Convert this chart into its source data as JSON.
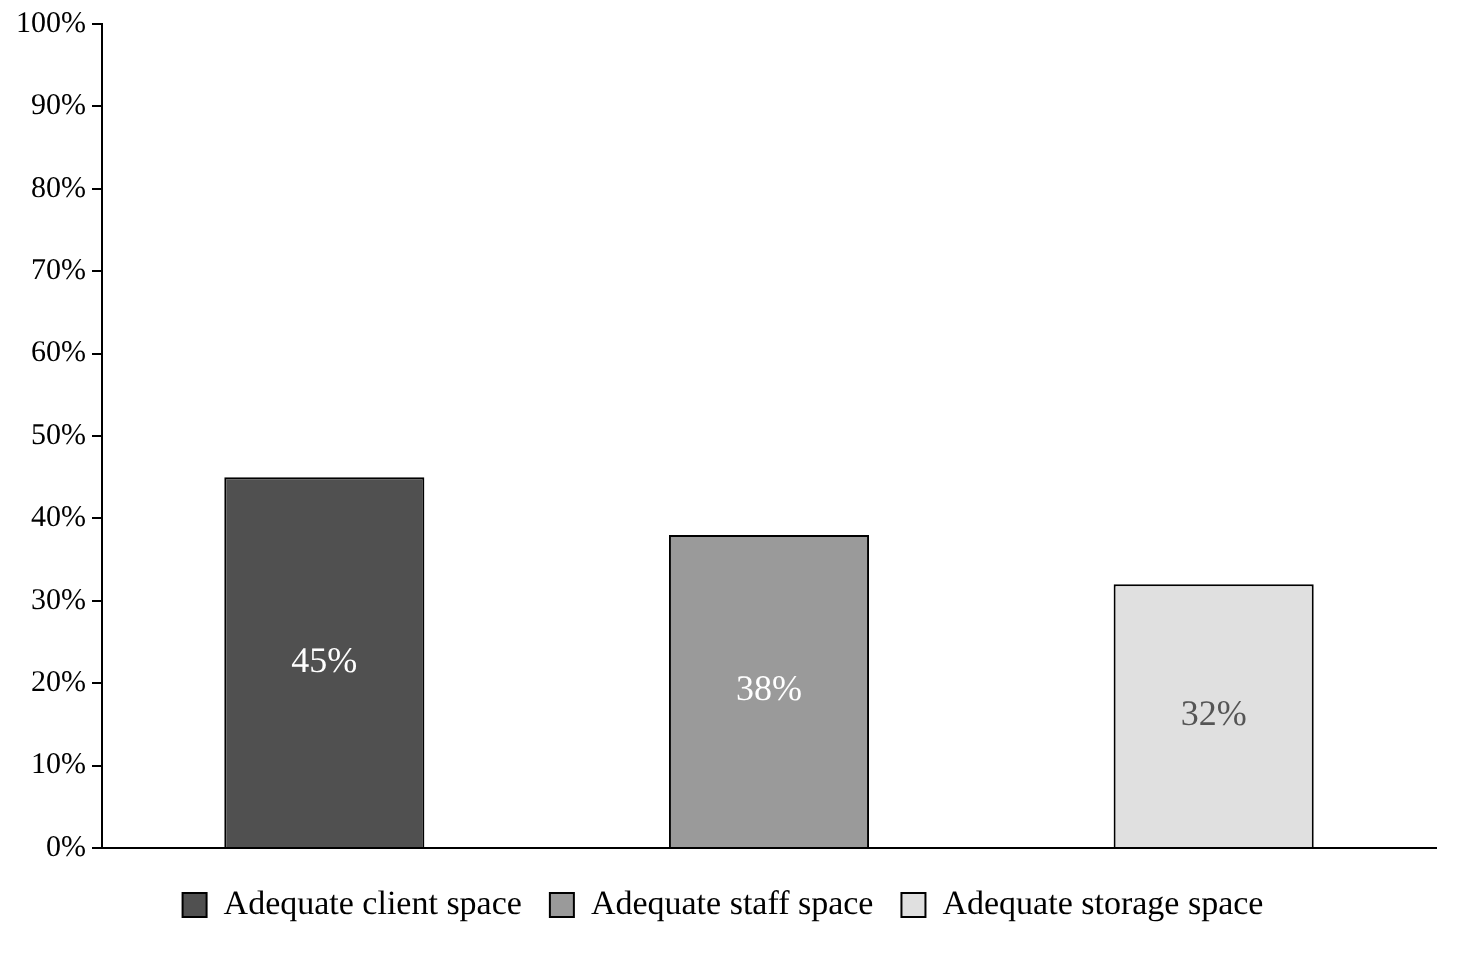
{
  "chart_data": {
    "type": "bar",
    "categories": [
      null,
      null,
      null
    ],
    "series": [
      {
        "name": "Adequate client space",
        "color": "#505050",
        "values": [
          45,
          null,
          null
        ],
        "value_labels": [
          "45%",
          null,
          null
        ]
      },
      {
        "name": "Adequate staff space",
        "color": "#9a9a9a",
        "values": [
          null,
          38,
          null
        ],
        "value_labels": [
          null,
          "38%",
          null
        ]
      },
      {
        "name": "Adequate storage space",
        "color": "#e0e0e0",
        "values": [
          null,
          null,
          32
        ],
        "value_labels": [
          null,
          null,
          "32%"
        ]
      }
    ],
    "ylim": [
      0,
      100
    ],
    "yticks": [
      {
        "value": 0,
        "label": "0%"
      },
      {
        "value": 10,
        "label": "10%"
      },
      {
        "value": 20,
        "label": "20%"
      },
      {
        "value": 30,
        "label": "30%"
      },
      {
        "value": 40,
        "label": "40%"
      },
      {
        "value": 50,
        "label": "50%"
      },
      {
        "value": 60,
        "label": "60%"
      },
      {
        "value": 70,
        "label": "70%"
      },
      {
        "value": 80,
        "label": "80%"
      },
      {
        "value": 90,
        "label": "90%"
      },
      {
        "value": 100,
        "label": "100%"
      }
    ],
    "tick_labels": "y",
    "grid": false,
    "legend": "bottom"
  }
}
